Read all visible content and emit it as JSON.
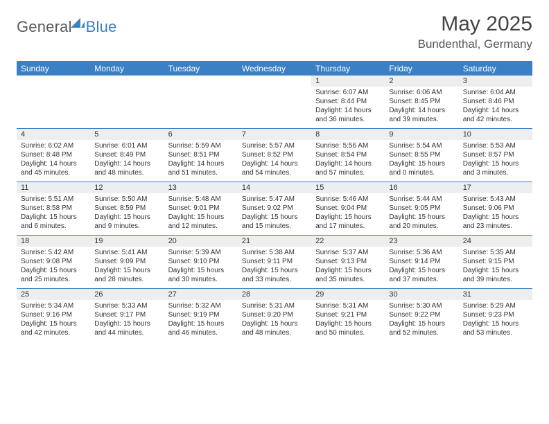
{
  "branding": {
    "logo_general": "General",
    "logo_blue": "Blue",
    "logo_color_gray": "#5b5b5b",
    "logo_color_blue": "#3b7fc4"
  },
  "header": {
    "month_title": "May 2025",
    "location": "Bundenthal, Germany"
  },
  "styling": {
    "header_bg": "#3b7fc4",
    "header_text": "#ffffff",
    "band_bg": "#eceef0",
    "rule_color": "#3b7fc4",
    "body_text": "#333333",
    "page_bg": "#ffffff",
    "daynum_fontsize": 11,
    "cell_fontsize": 10,
    "title_fontsize": 30,
    "location_fontsize": 17,
    "dayhdr_fontsize": 12
  },
  "weekdays": [
    "Sunday",
    "Monday",
    "Tuesday",
    "Wednesday",
    "Thursday",
    "Friday",
    "Saturday"
  ],
  "weeks": [
    [
      {
        "n": "",
        "sr": "",
        "ss": "",
        "dl": ""
      },
      {
        "n": "",
        "sr": "",
        "ss": "",
        "dl": ""
      },
      {
        "n": "",
        "sr": "",
        "ss": "",
        "dl": ""
      },
      {
        "n": "",
        "sr": "",
        "ss": "",
        "dl": ""
      },
      {
        "n": "1",
        "sr": "Sunrise: 6:07 AM",
        "ss": "Sunset: 8:44 PM",
        "dl": "Daylight: 14 hours and 36 minutes."
      },
      {
        "n": "2",
        "sr": "Sunrise: 6:06 AM",
        "ss": "Sunset: 8:45 PM",
        "dl": "Daylight: 14 hours and 39 minutes."
      },
      {
        "n": "3",
        "sr": "Sunrise: 6:04 AM",
        "ss": "Sunset: 8:46 PM",
        "dl": "Daylight: 14 hours and 42 minutes."
      }
    ],
    [
      {
        "n": "4",
        "sr": "Sunrise: 6:02 AM",
        "ss": "Sunset: 8:48 PM",
        "dl": "Daylight: 14 hours and 45 minutes."
      },
      {
        "n": "5",
        "sr": "Sunrise: 6:01 AM",
        "ss": "Sunset: 8:49 PM",
        "dl": "Daylight: 14 hours and 48 minutes."
      },
      {
        "n": "6",
        "sr": "Sunrise: 5:59 AM",
        "ss": "Sunset: 8:51 PM",
        "dl": "Daylight: 14 hours and 51 minutes."
      },
      {
        "n": "7",
        "sr": "Sunrise: 5:57 AM",
        "ss": "Sunset: 8:52 PM",
        "dl": "Daylight: 14 hours and 54 minutes."
      },
      {
        "n": "8",
        "sr": "Sunrise: 5:56 AM",
        "ss": "Sunset: 8:54 PM",
        "dl": "Daylight: 14 hours and 57 minutes."
      },
      {
        "n": "9",
        "sr": "Sunrise: 5:54 AM",
        "ss": "Sunset: 8:55 PM",
        "dl": "Daylight: 15 hours and 0 minutes."
      },
      {
        "n": "10",
        "sr": "Sunrise: 5:53 AM",
        "ss": "Sunset: 8:57 PM",
        "dl": "Daylight: 15 hours and 3 minutes."
      }
    ],
    [
      {
        "n": "11",
        "sr": "Sunrise: 5:51 AM",
        "ss": "Sunset: 8:58 PM",
        "dl": "Daylight: 15 hours and 6 minutes."
      },
      {
        "n": "12",
        "sr": "Sunrise: 5:50 AM",
        "ss": "Sunset: 8:59 PM",
        "dl": "Daylight: 15 hours and 9 minutes."
      },
      {
        "n": "13",
        "sr": "Sunrise: 5:48 AM",
        "ss": "Sunset: 9:01 PM",
        "dl": "Daylight: 15 hours and 12 minutes."
      },
      {
        "n": "14",
        "sr": "Sunrise: 5:47 AM",
        "ss": "Sunset: 9:02 PM",
        "dl": "Daylight: 15 hours and 15 minutes."
      },
      {
        "n": "15",
        "sr": "Sunrise: 5:46 AM",
        "ss": "Sunset: 9:04 PM",
        "dl": "Daylight: 15 hours and 17 minutes."
      },
      {
        "n": "16",
        "sr": "Sunrise: 5:44 AM",
        "ss": "Sunset: 9:05 PM",
        "dl": "Daylight: 15 hours and 20 minutes."
      },
      {
        "n": "17",
        "sr": "Sunrise: 5:43 AM",
        "ss": "Sunset: 9:06 PM",
        "dl": "Daylight: 15 hours and 23 minutes."
      }
    ],
    [
      {
        "n": "18",
        "sr": "Sunrise: 5:42 AM",
        "ss": "Sunset: 9:08 PM",
        "dl": "Daylight: 15 hours and 25 minutes."
      },
      {
        "n": "19",
        "sr": "Sunrise: 5:41 AM",
        "ss": "Sunset: 9:09 PM",
        "dl": "Daylight: 15 hours and 28 minutes."
      },
      {
        "n": "20",
        "sr": "Sunrise: 5:39 AM",
        "ss": "Sunset: 9:10 PM",
        "dl": "Daylight: 15 hours and 30 minutes."
      },
      {
        "n": "21",
        "sr": "Sunrise: 5:38 AM",
        "ss": "Sunset: 9:11 PM",
        "dl": "Daylight: 15 hours and 33 minutes."
      },
      {
        "n": "22",
        "sr": "Sunrise: 5:37 AM",
        "ss": "Sunset: 9:13 PM",
        "dl": "Daylight: 15 hours and 35 minutes."
      },
      {
        "n": "23",
        "sr": "Sunrise: 5:36 AM",
        "ss": "Sunset: 9:14 PM",
        "dl": "Daylight: 15 hours and 37 minutes."
      },
      {
        "n": "24",
        "sr": "Sunrise: 5:35 AM",
        "ss": "Sunset: 9:15 PM",
        "dl": "Daylight: 15 hours and 39 minutes."
      }
    ],
    [
      {
        "n": "25",
        "sr": "Sunrise: 5:34 AM",
        "ss": "Sunset: 9:16 PM",
        "dl": "Daylight: 15 hours and 42 minutes."
      },
      {
        "n": "26",
        "sr": "Sunrise: 5:33 AM",
        "ss": "Sunset: 9:17 PM",
        "dl": "Daylight: 15 hours and 44 minutes."
      },
      {
        "n": "27",
        "sr": "Sunrise: 5:32 AM",
        "ss": "Sunset: 9:19 PM",
        "dl": "Daylight: 15 hours and 46 minutes."
      },
      {
        "n": "28",
        "sr": "Sunrise: 5:31 AM",
        "ss": "Sunset: 9:20 PM",
        "dl": "Daylight: 15 hours and 48 minutes."
      },
      {
        "n": "29",
        "sr": "Sunrise: 5:31 AM",
        "ss": "Sunset: 9:21 PM",
        "dl": "Daylight: 15 hours and 50 minutes."
      },
      {
        "n": "30",
        "sr": "Sunrise: 5:30 AM",
        "ss": "Sunset: 9:22 PM",
        "dl": "Daylight: 15 hours and 52 minutes."
      },
      {
        "n": "31",
        "sr": "Sunrise: 5:29 AM",
        "ss": "Sunset: 9:23 PM",
        "dl": "Daylight: 15 hours and 53 minutes."
      }
    ]
  ]
}
